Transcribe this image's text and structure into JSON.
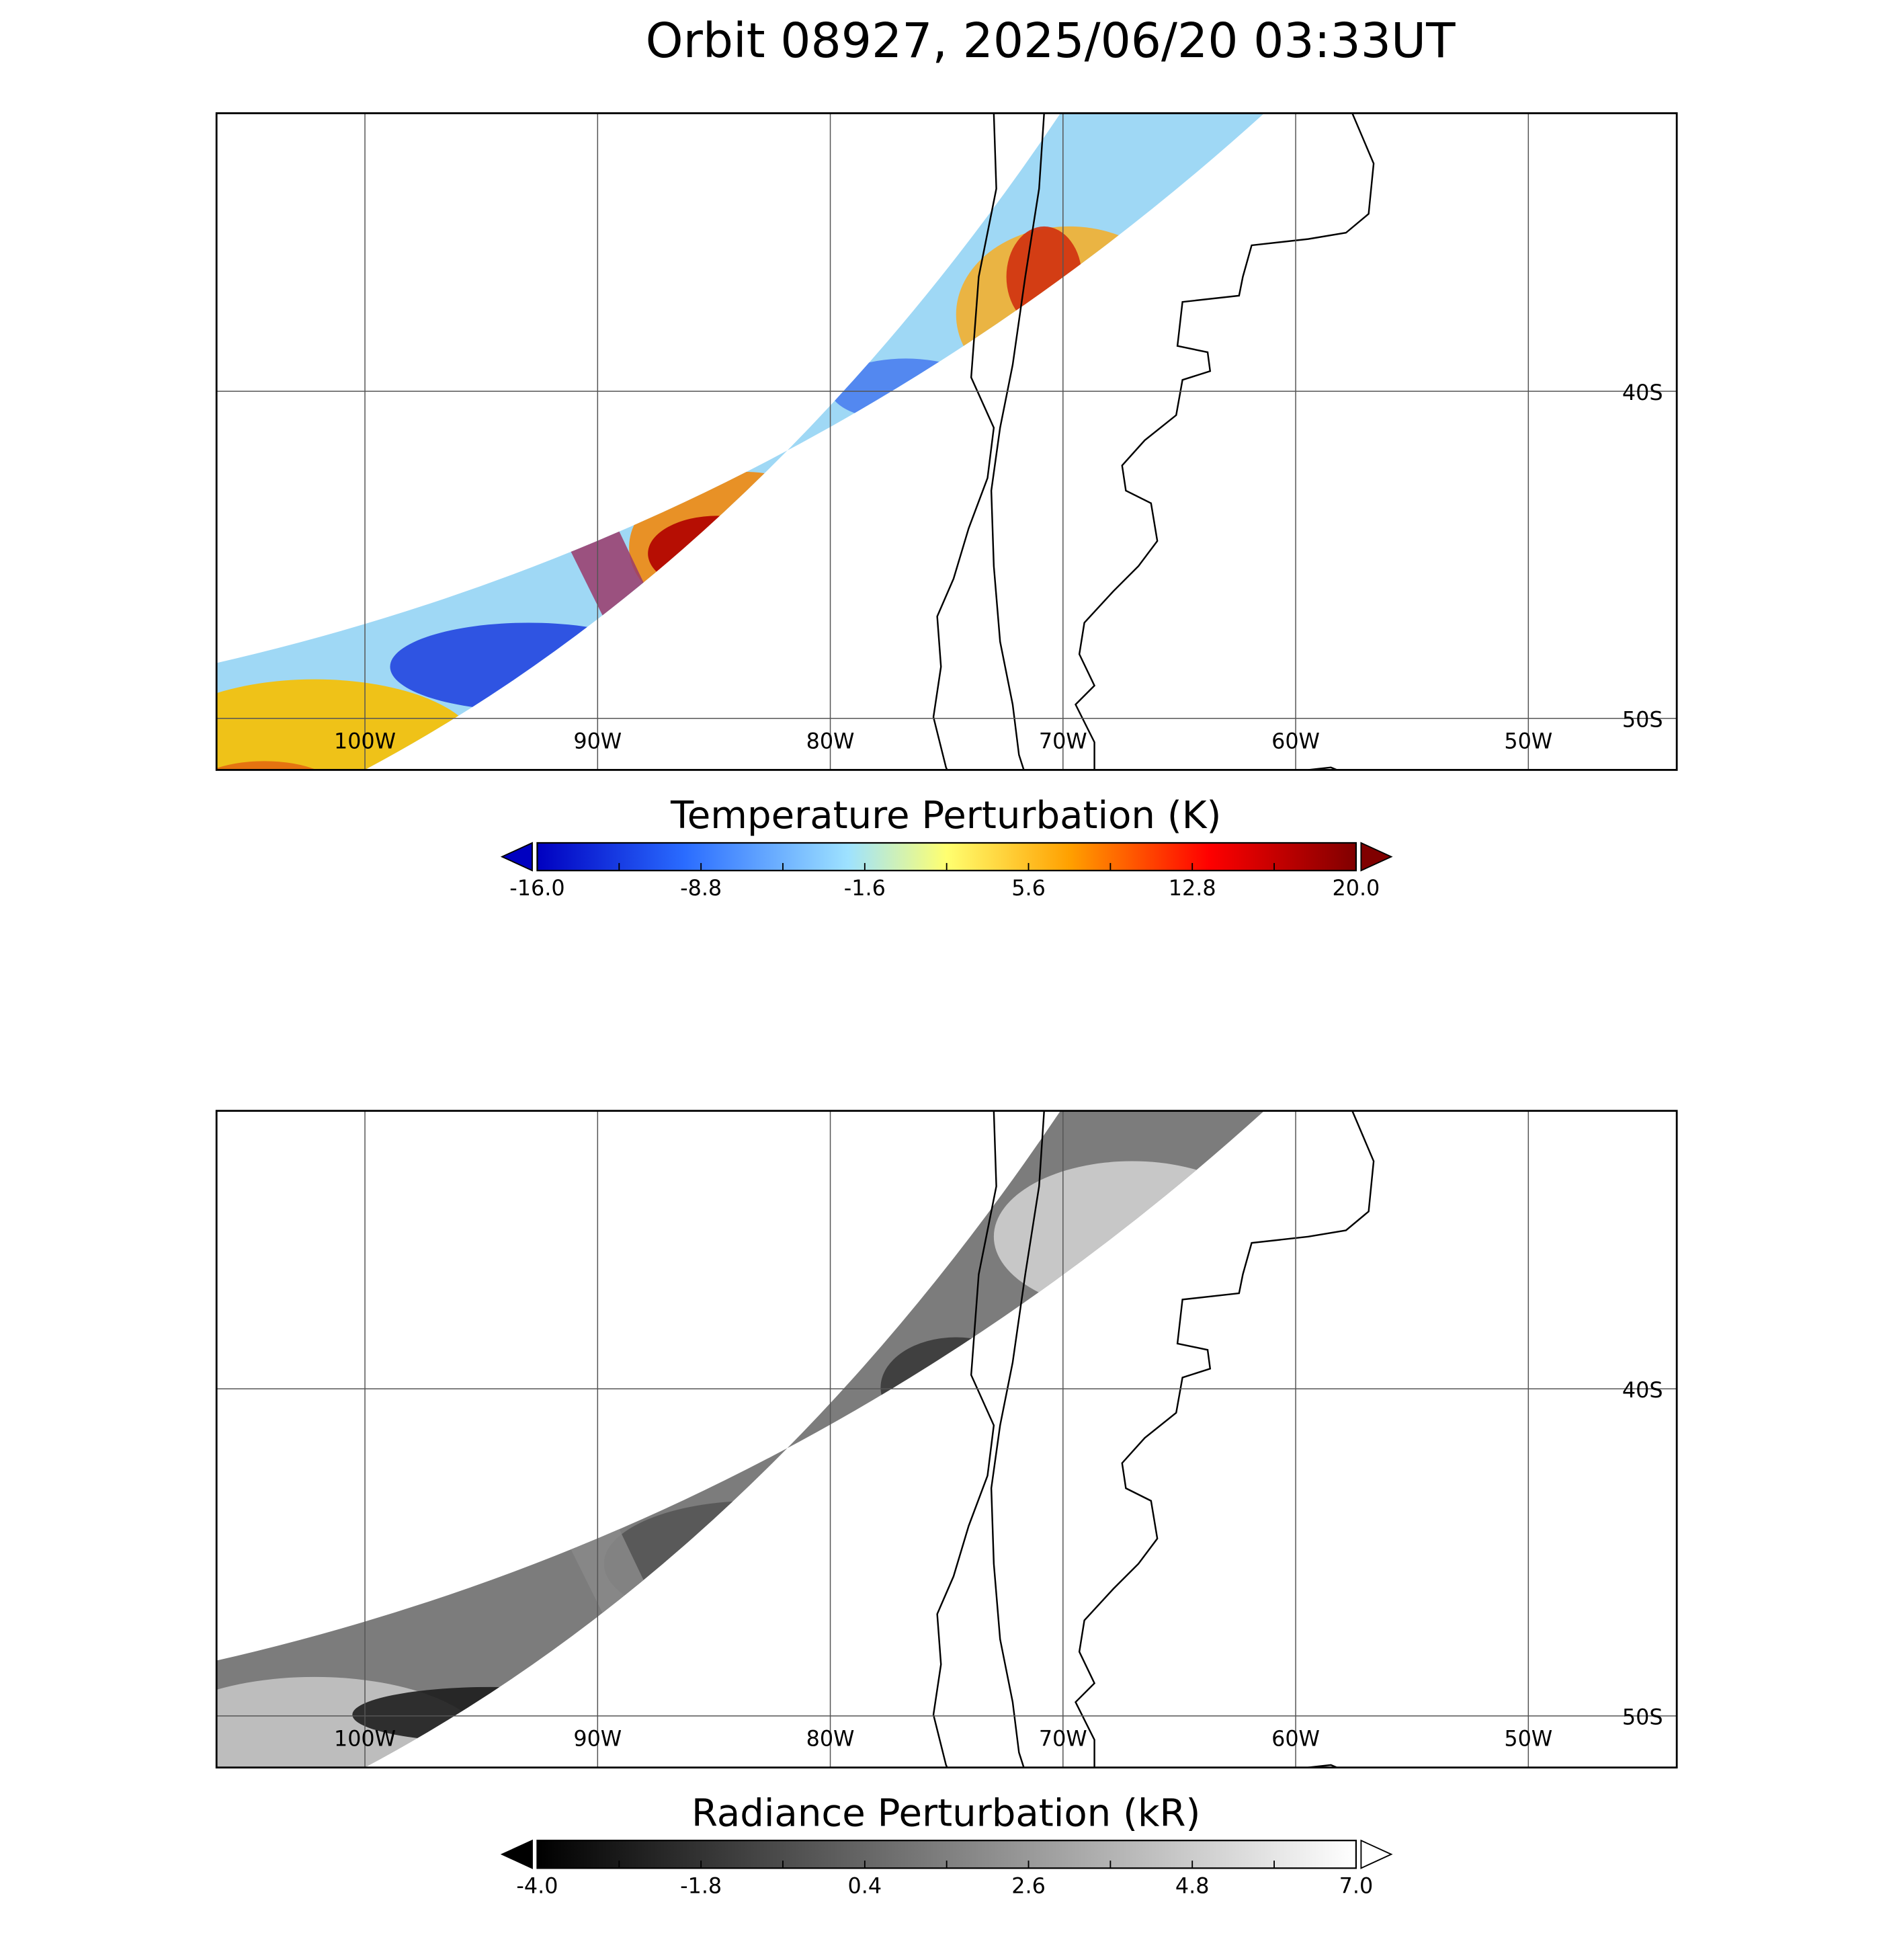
{
  "title": "Orbit 08927, 2025/06/20 03:33UT",
  "panels": [
    {
      "lon_labels": [
        "100W",
        "90W",
        "80W",
        "70W",
        "60W",
        "50W"
      ],
      "lat_labels": [
        "40S",
        "50S"
      ],
      "colorbar": {
        "title": "Temperature Perturbation (K)",
        "ticks": [
          "-16.0",
          "-8.8",
          "-1.6",
          "5.6",
          "12.8",
          "20.0"
        ]
      }
    },
    {
      "lon_labels": [
        "100W",
        "90W",
        "80W",
        "70W",
        "60W",
        "50W"
      ],
      "lat_labels": [
        "40S",
        "50S"
      ],
      "colorbar": {
        "title": "Radiance Perturbation (kR)",
        "ticks": [
          "-4.0",
          "-1.8",
          "0.4",
          "2.6",
          "4.8",
          "7.0"
        ]
      }
    }
  ]
}
